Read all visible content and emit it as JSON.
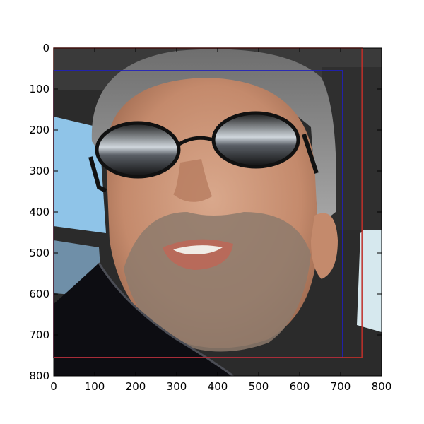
{
  "figure": {
    "image_subject": "photo of a man's face wearing dark reflective sunglasses, inside a car",
    "x_ticks": [
      "0",
      "100",
      "200",
      "300",
      "400",
      "500",
      "600",
      "700",
      "800"
    ],
    "y_ticks": [
      "0",
      "100",
      "200",
      "300",
      "400",
      "500",
      "600",
      "700",
      "800"
    ],
    "x_range": [
      0,
      800
    ],
    "y_range": [
      0,
      800
    ],
    "y_inverted": true
  },
  "boxes": [
    {
      "color": "#1f1fbf",
      "x_min": 0,
      "y_min": 55,
      "x_max": 705,
      "y_max": 755
    },
    {
      "color": "#c0302a",
      "x_min": 0,
      "y_min": 0,
      "x_max": 752,
      "y_max": 755
    }
  ],
  "colors": {
    "skin": "#c99478",
    "hair": "#8c8c8c",
    "car_interior": "#2b2b2b",
    "window_sky": "#8fc4e8",
    "jacket": "#0d0d12"
  }
}
